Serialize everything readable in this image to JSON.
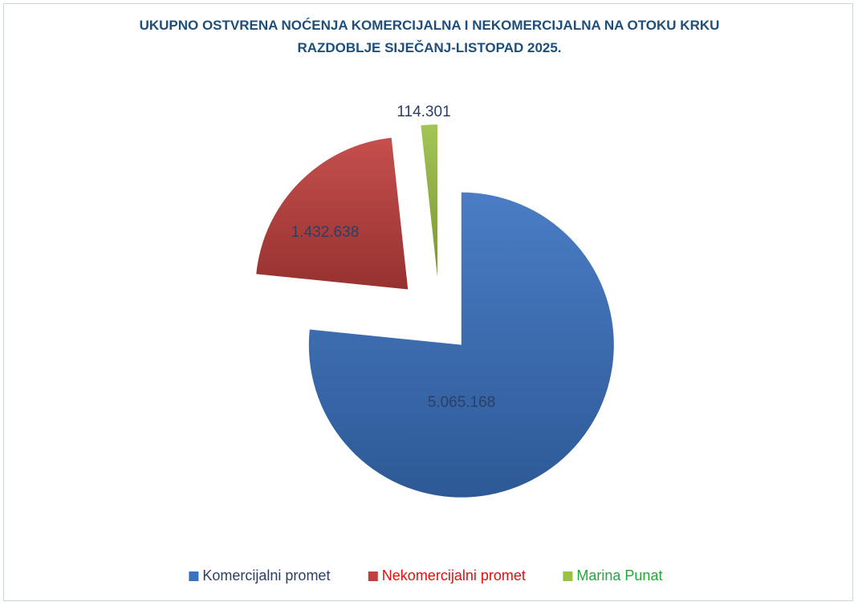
{
  "chart_data": {
    "type": "pie",
    "title": "UKUPNO OSTVRENA NOĆENJA KOMERCIJALNA I NEKOMERCIJALNA NA OTOKU KRKU  RAZDOBLJE SIJEČANJ-LISTOPAD 2025.",
    "categories": [
      "Komercijalni promet",
      "Nekomercijalni promet",
      "Marina Punat"
    ],
    "values": [
      5065168,
      1432638,
      114301
    ],
    "value_labels": [
      "5.065.168",
      "1.432.638",
      "114.301"
    ],
    "colors": [
      "#3a72c0",
      "#c0403d",
      "#9bc046"
    ],
    "legend_text_colors": [
      "#2b3f66",
      "#e0100f",
      "#22a83a"
    ],
    "legend": "bottom"
  }
}
